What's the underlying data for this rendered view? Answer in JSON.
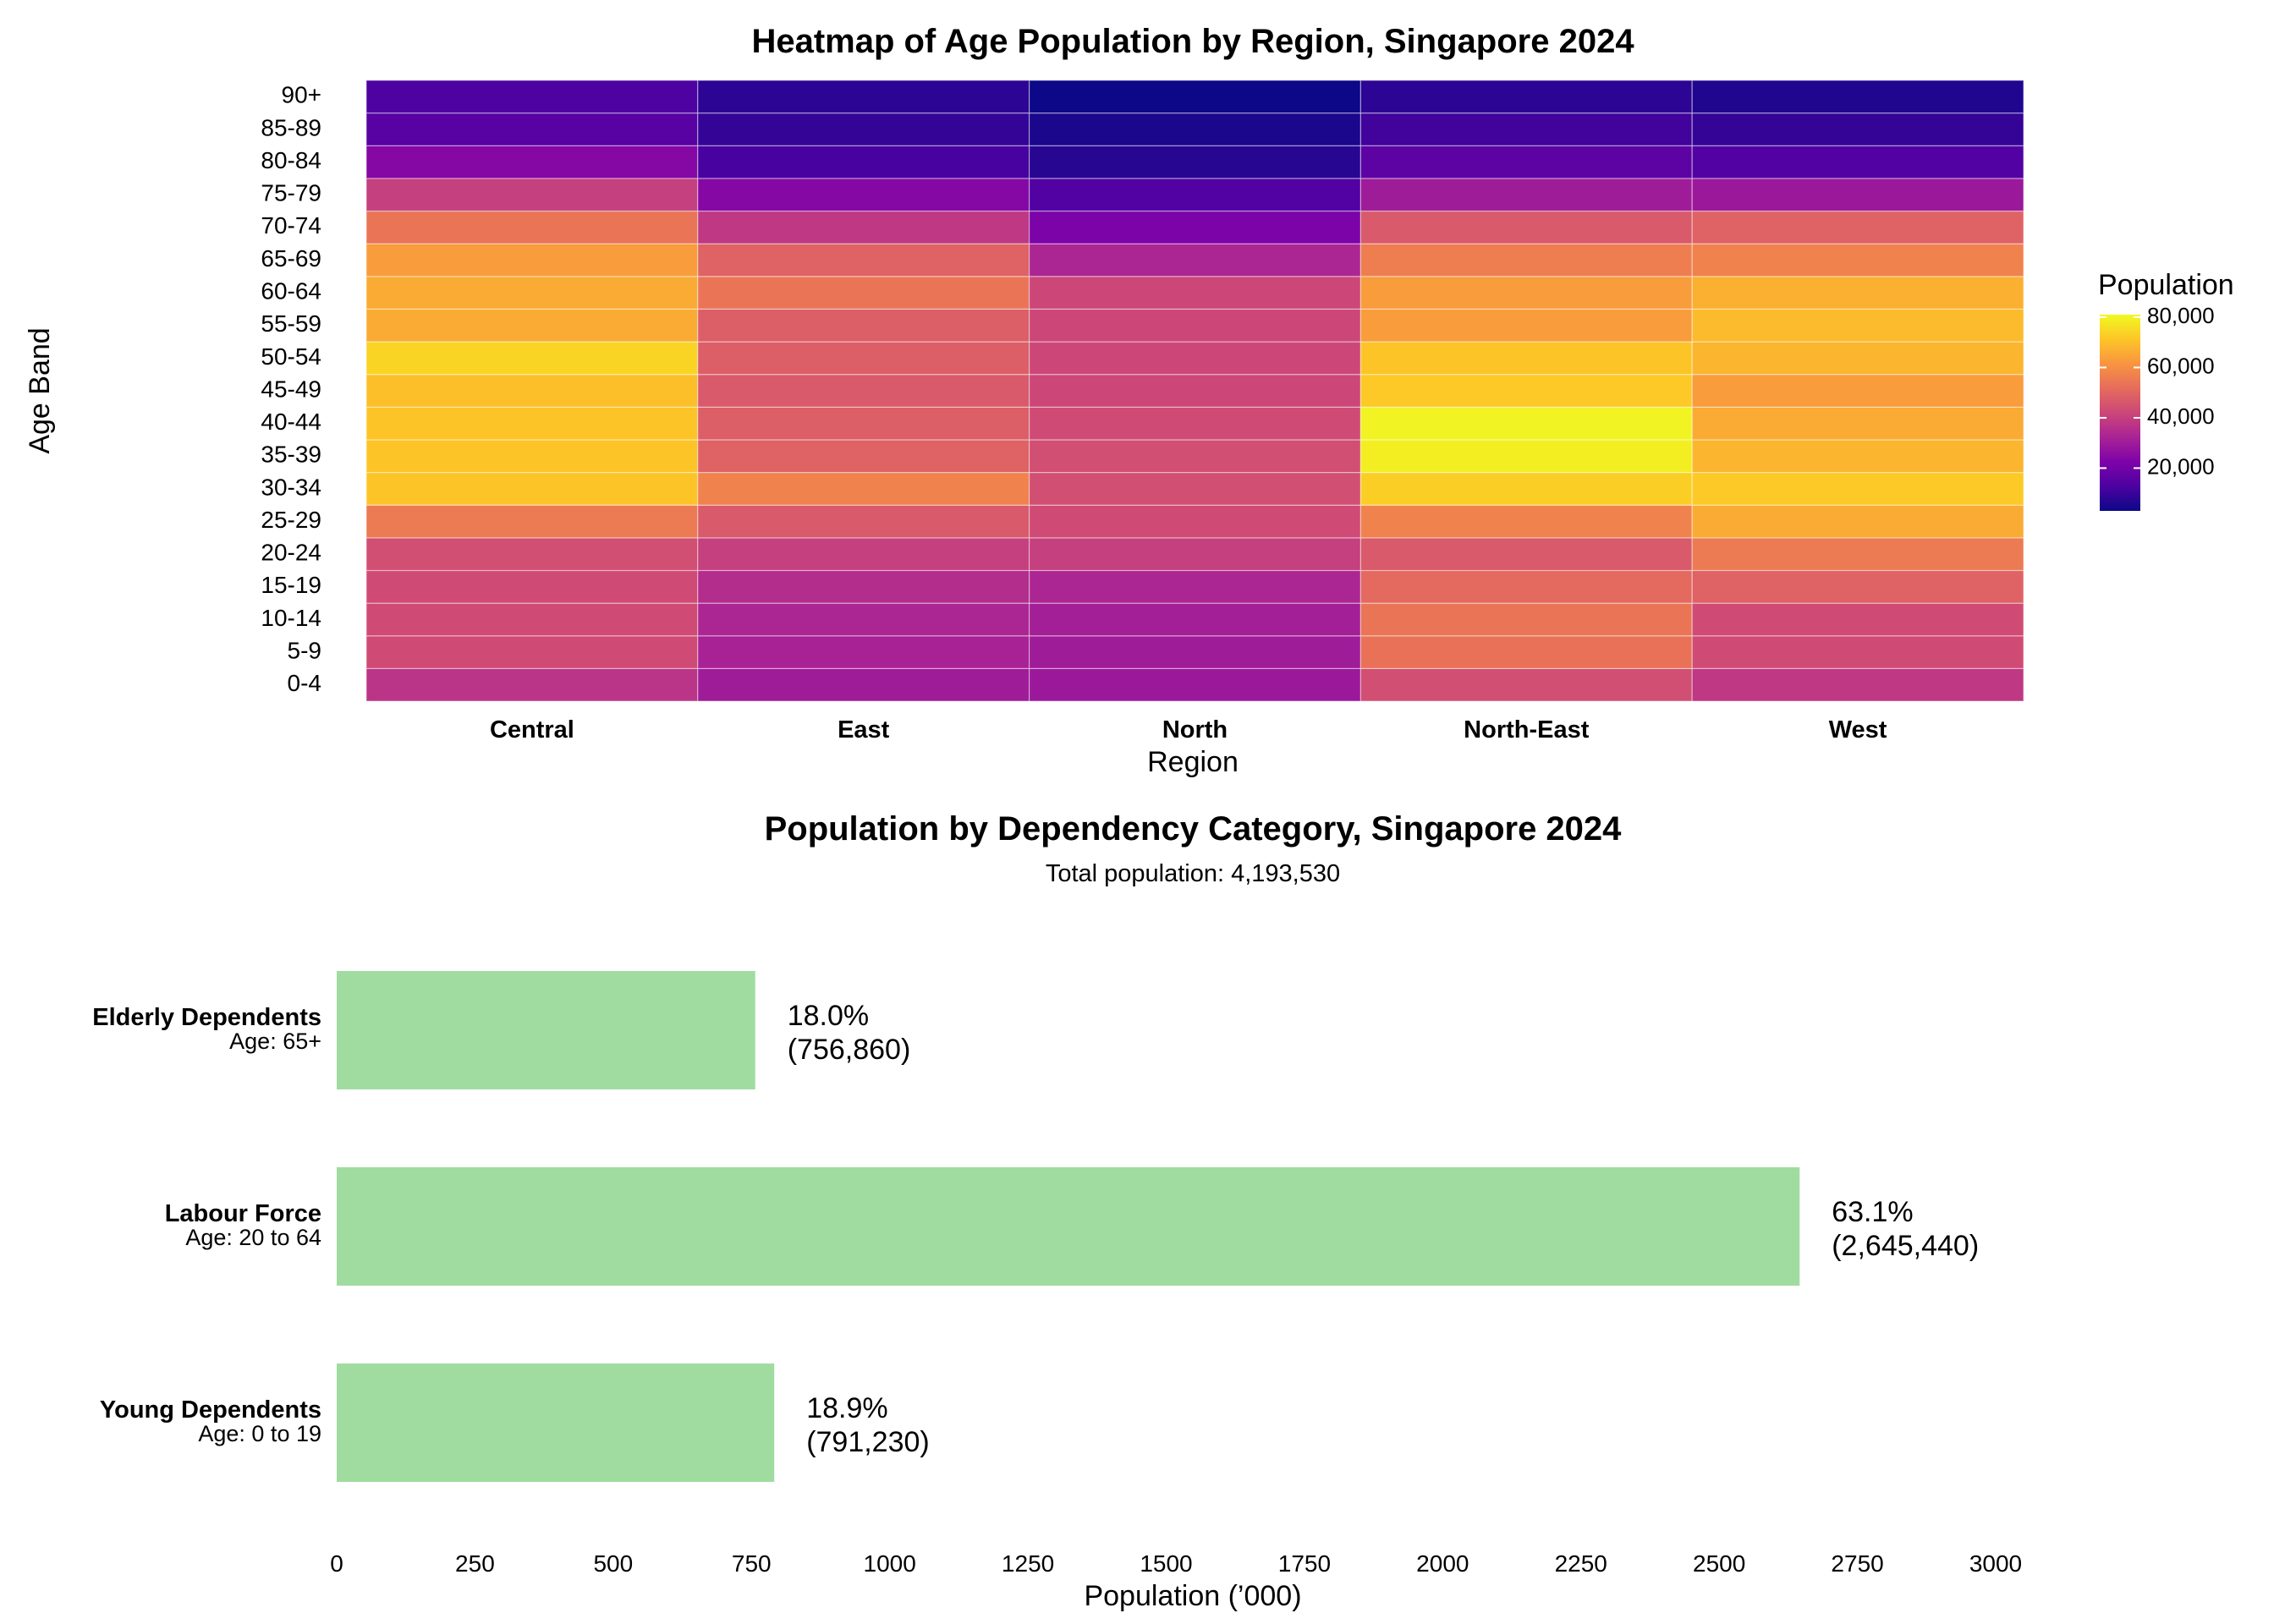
{
  "chart_data": [
    {
      "type": "heatmap",
      "title": "Heatmap of Age Population by Region, Singapore 2024",
      "xlabel": "Region",
      "ylabel": "Age Band",
      "x": [
        "Central",
        "East",
        "North",
        "North-East",
        "West"
      ],
      "y": [
        "0-4",
        "5-9",
        "10-14",
        "15-19",
        "20-24",
        "25-29",
        "30-34",
        "35-39",
        "40-44",
        "45-49",
        "50-54",
        "55-59",
        "60-64",
        "65-69",
        "70-74",
        "75-79",
        "80-84",
        "85-89",
        "90+"
      ],
      "values": [
        [
          37000,
          30000,
          29000,
          44000,
          38000
        ],
        [
          43000,
          32000,
          30000,
          53000,
          43000
        ],
        [
          43000,
          33000,
          31000,
          54000,
          43000
        ],
        [
          43000,
          35000,
          33000,
          51000,
          49000
        ],
        [
          44000,
          40000,
          40000,
          47000,
          55000
        ],
        [
          55000,
          47000,
          43000,
          57000,
          66000
        ],
        [
          71000,
          57000,
          44000,
          73000,
          72000
        ],
        [
          71000,
          49000,
          44000,
          79000,
          68000
        ],
        [
          71000,
          48000,
          43000,
          80000,
          66000
        ],
        [
          70000,
          47000,
          42000,
          72000,
          63000
        ],
        [
          74000,
          48000,
          42000,
          71000,
          68000
        ],
        [
          66000,
          48000,
          42000,
          63000,
          69000
        ],
        [
          66000,
          54000,
          42000,
          63000,
          67000
        ],
        [
          63000,
          49000,
          33000,
          56000,
          57000
        ],
        [
          54000,
          38000,
          22000,
          47000,
          49000
        ],
        [
          40000,
          24000,
          14000,
          30000,
          29000
        ],
        [
          24000,
          12000,
          7000,
          16000,
          14000
        ],
        [
          15000,
          9000,
          5000,
          11000,
          9000
        ],
        [
          13000,
          8000,
          3000,
          8000,
          6000
        ]
      ],
      "colorbar": {
        "title": "Population",
        "ticks": [
          "20,000",
          "40,000",
          "60,000",
          "80,000"
        ],
        "tick_values": [
          20000,
          40000,
          60000,
          80000
        ],
        "min": 3000,
        "max": 81000,
        "colormap": "plasma"
      }
    },
    {
      "type": "bar",
      "orientation": "horizontal",
      "title": "Population by Dependency Category, Singapore 2024",
      "subtitle": "Total population: 4,193,530",
      "xlabel": "Population (’000)",
      "ylabel": "",
      "xlim": [
        0,
        3000
      ],
      "x_ticks": [
        0,
        250,
        500,
        750,
        1000,
        1250,
        1500,
        1750,
        2000,
        2250,
        2500,
        2750,
        3000
      ],
      "bar_color": "#a0dca0",
      "categories": [
        {
          "name": "Elderly Dependents",
          "age": "Age: 65+",
          "value": 756.86,
          "pct": "18.0%",
          "count": "(756,860)"
        },
        {
          "name": "Labour Force",
          "age": "Age: 20 to 64",
          "value": 2645.44,
          "pct": "63.1%",
          "count": "(2,645,440)"
        },
        {
          "name": "Young Dependents",
          "age": "Age: 0 to 19",
          "value": 791.23,
          "pct": "18.9%",
          "count": "(791,230)"
        }
      ]
    }
  ]
}
